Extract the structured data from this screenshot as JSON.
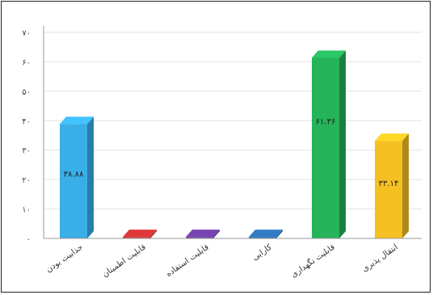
{
  "chart_data": {
    "type": "bar",
    "style": "3d",
    "title": "",
    "xlabel": "",
    "ylabel": "",
    "ylim": [
      0,
      70
    ],
    "grid": true,
    "legend": "none",
    "y_tick_labels": [
      "۰",
      "۱۰",
      "۲۰",
      "۳۰",
      "۴۰",
      "۵۰",
      "۶۰",
      "۷۰"
    ],
    "categories": [
      "جذابیت بودن",
      "قابلیت اطمینان",
      "قابلیت استفاده",
      "کارایی",
      "قابلیت نگهداری",
      "انتقال پذیری"
    ],
    "values": [
      38.88,
      0.5,
      0.5,
      0.5,
      61.36,
      33.14
    ],
    "value_labels": [
      "۳۸.۸۸",
      "",
      "",
      "",
      "۶۱.۳۶",
      "۳۳.۱۴"
    ],
    "colors": [
      "#3aaee6",
      "#c83232",
      "#6a3ea0",
      "#2b6fb0",
      "#26b35a",
      "#f5c022"
    ]
  }
}
